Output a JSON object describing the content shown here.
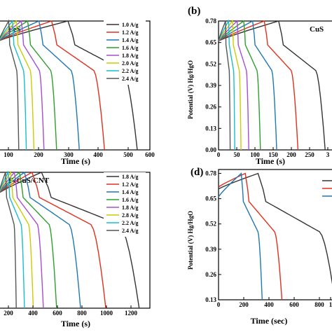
{
  "panels": [
    {
      "id": "a",
      "title": "FeS",
      "panel_label": "",
      "xlabel": "Time (s)",
      "ylabel": "",
      "xticks": [
        "100",
        "200",
        "300",
        "400",
        "500",
        "600"
      ],
      "yticks": [],
      "legend": [
        "1.0 A/g",
        "1.2 A/g",
        "1.4 A/g",
        "1.6 A/g",
        "1.8 A/g",
        "2.0 A/g",
        "2.2 A/g",
        "2.4 A/g"
      ]
    },
    {
      "id": "b",
      "title": "CuS",
      "panel_label": "(b)",
      "xlabel": "Time (s)",
      "ylabel": "Potential (V) Hg/HgO",
      "xticks": [
        "0",
        "50",
        "100",
        "150",
        "200",
        "250",
        "3"
      ],
      "yticks": [
        "0.00",
        "0.13",
        "0.26",
        "0.39",
        "0.52",
        "0.65",
        "0.78"
      ],
      "legend": []
    },
    {
      "id": "c",
      "title": "FeCuS/CNT",
      "panel_label": "",
      "xlabel": "Time (s)",
      "ylabel": "",
      "xticks": [
        "200",
        "400",
        "600",
        "800",
        "1000",
        "1200"
      ],
      "yticks": [],
      "legend": [
        "1.8 A/g",
        "1.2 A/g",
        "1.4 A/g",
        "1.6 A/g",
        "1.8 A/g",
        "2.8 A/g",
        "2.2 A/g",
        "2.4 A/g"
      ]
    },
    {
      "id": "d",
      "title": "",
      "panel_label": "(d)",
      "xlabel": "Time (sec)",
      "ylabel": "Potential (V) Hg/HgO",
      "xticks": [
        "0",
        "200",
        "400",
        "600",
        "800",
        "1"
      ],
      "yticks": [
        "0.13",
        "0.26",
        "0.39",
        "0.52",
        "0.65",
        "0.78"
      ],
      "legend": []
    }
  ],
  "chart_data": [
    {
      "type": "line",
      "panel": "a",
      "title": "FeS",
      "xlabel": "Time (s)",
      "ylabel": "",
      "xlim": [
        0,
        600
      ],
      "ylim": [
        0,
        0.78
      ],
      "colors": [
        "#333333",
        "#e0301e",
        "#1f77b4",
        "#2ca02c",
        "#a64dd6",
        "#cccc00",
        "#17becf",
        "#555555"
      ],
      "series": [
        {
          "name": "1.0 A/g",
          "charge_end": 275,
          "discharge_end": 550
        },
        {
          "name": "1.2 A/g",
          "charge_end": 210,
          "discharge_end": 420
        },
        {
          "name": "1.4 A/g",
          "charge_end": 160,
          "discharge_end": 320
        },
        {
          "name": "1.6 A/g",
          "charge_end": 115,
          "discharge_end": 230
        },
        {
          "name": "1.8 A/g",
          "charge_end": 90,
          "discharge_end": 180
        },
        {
          "name": "2.0 A/g",
          "charge_end": 70,
          "discharge_end": 140
        },
        {
          "name": "2.2 A/g",
          "charge_end": 55,
          "discharge_end": 110
        },
        {
          "name": "2.4 A/g",
          "charge_end": 40,
          "discharge_end": 80
        }
      ]
    },
    {
      "type": "line",
      "panel": "b",
      "title": "CuS",
      "xlabel": "Time (s)",
      "ylabel": "Potential (V) Hg/HgO",
      "xlim": [
        0,
        300
      ],
      "ylim": [
        0,
        0.78
      ],
      "colors": [
        "#333333",
        "#e0301e",
        "#1f77b4",
        "#2ca02c",
        "#a64dd6",
        "#cccc00",
        "#17becf",
        "#555555"
      ],
      "series": [
        {
          "charge_end": 155,
          "discharge_end": 275
        },
        {
          "charge_end": 118,
          "discharge_end": 205
        },
        {
          "charge_end": 88,
          "discharge_end": 150
        },
        {
          "charge_end": 65,
          "discharge_end": 108
        },
        {
          "charge_end": 48,
          "discharge_end": 78
        },
        {
          "charge_end": 36,
          "discharge_end": 58
        },
        {
          "charge_end": 26,
          "discharge_end": 42
        },
        {
          "charge_end": 18,
          "discharge_end": 30
        }
      ]
    },
    {
      "type": "line",
      "panel": "c",
      "title": "FeCuS/CNT",
      "xlabel": "Time (s)",
      "ylabel": "",
      "xlim": [
        0,
        1200
      ],
      "ylim": [
        0,
        0.78
      ],
      "colors": [
        "#333333",
        "#e0301e",
        "#1f77b4",
        "#2ca02c",
        "#a64dd6",
        "#cccc00",
        "#17becf",
        "#555555"
      ],
      "series": [
        {
          "name": "1.8 A/g",
          "charge_end": 340,
          "discharge_end": 1115
        },
        {
          "name": "1.2 A/g",
          "charge_end": 265,
          "discharge_end": 850
        },
        {
          "name": "1.4 A/g",
          "charge_end": 205,
          "discharge_end": 650
        },
        {
          "name": "1.6 A/g",
          "charge_end": 165,
          "discharge_end": 460
        },
        {
          "name": "1.8 A/g",
          "charge_end": 125,
          "discharge_end": 355
        },
        {
          "name": "2.8 A/g",
          "charge_end": 95,
          "discharge_end": 275
        },
        {
          "name": "2.2 A/g",
          "charge_end": 75,
          "discharge_end": 205
        },
        {
          "name": "2.4 A/g",
          "charge_end": 55,
          "discharge_end": 140
        }
      ]
    },
    {
      "type": "line",
      "panel": "d",
      "title": "",
      "xlabel": "Time (sec)",
      "ylabel": "Potential (V) Hg/HgO",
      "xlim": [
        0,
        1000
      ],
      "ylim": [
        0.13,
        0.8
      ],
      "colors": [
        "#333333",
        "#e0301e",
        "#1f77b4"
      ],
      "series": [
        {
          "charge_end": 340,
          "discharge_end": 1000,
          "start_v": 0.7
        },
        {
          "charge_end": 230,
          "discharge_end": 545,
          "start_v": 0.71
        },
        {
          "charge_end": 195,
          "discharge_end": 375,
          "start_v": 0.66
        }
      ]
    }
  ]
}
